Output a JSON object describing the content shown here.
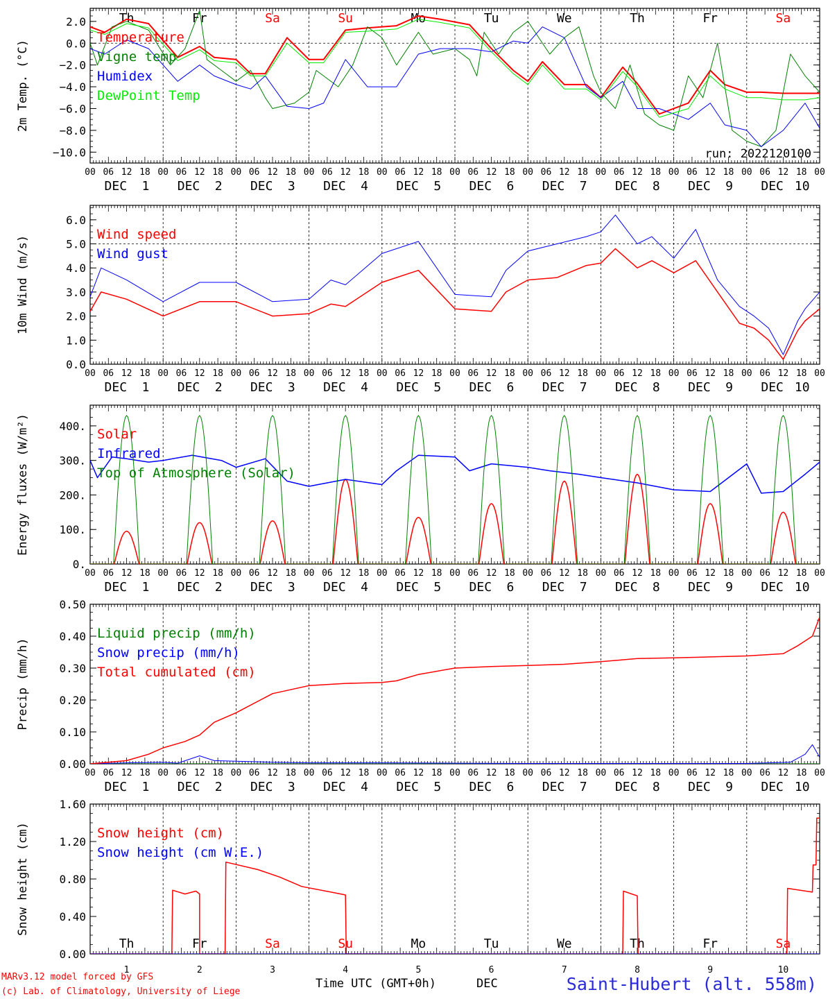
{
  "footer": {
    "model": "MARv3.12 model forced by GFS",
    "copyright": "(c) Lab. of Climatology, University of Liege",
    "xlabel": "Time UTC (GMT+0h)",
    "month": "DEC",
    "station": "Saint-Hubert (alt. 558m)"
  },
  "days": {
    "names": [
      "Th",
      "Fr",
      "Sa",
      "Su",
      "Mo",
      "Tu",
      "We",
      "Th",
      "Fr",
      "Sa"
    ],
    "weekend": [
      false,
      false,
      true,
      true,
      false,
      false,
      false,
      false,
      false,
      true
    ],
    "dates": [
      "1",
      "2",
      "3",
      "4",
      "5",
      "6",
      "7",
      "8",
      "9",
      "10"
    ],
    "hour_ticks": [
      "00",
      "06",
      "12",
      "18"
    ],
    "month": "DEC"
  },
  "colors": {
    "red": "#ff0000",
    "green": "#008000",
    "blue": "#0000ff",
    "lightgreen": "#00ee00",
    "station": "#2b2bd6"
  },
  "chart_data": [
    {
      "type": "line",
      "ylabel": "2m Temp. (°C)",
      "ylim": [
        -11,
        3.2
      ],
      "yticks": [
        2.0,
        0.0,
        -2.0,
        -4.0,
        -6.0,
        -8.0,
        -10.0
      ],
      "ytick_labels": [
        "2.0",
        "0.0",
        "−2.0",
        "−4.0",
        "−6.0",
        "−8.0",
        "−10.0"
      ],
      "zero_line": 0,
      "show_day_names": true,
      "annotation": "run: 2022120100",
      "x_unit": "days since DEC 1 00 UTC",
      "series": [
        {
          "name": "Temperature",
          "color": "#ff0000",
          "width": 2,
          "x": [
            0,
            0.2,
            0.5,
            0.8,
            1.2,
            1.5,
            1.7,
            2,
            2.2,
            2.4,
            2.7,
            3,
            3.2,
            3.5,
            3.8,
            4.2,
            4.5,
            4.8,
            5.2,
            5.5,
            5.8,
            6,
            6.2,
            6.5,
            6.8,
            7,
            7.3,
            7.5,
            7.8,
            8.2,
            8.5,
            8.7,
            9,
            9.2,
            9.5,
            9.8,
            10
          ],
          "y": [
            1.5,
            1.0,
            2.2,
            1.8,
            -1.3,
            -0.3,
            -1.3,
            -1.5,
            -2.8,
            -2.8,
            0.5,
            -1.5,
            -1.5,
            1.2,
            1.4,
            1.6,
            2.5,
            2.2,
            1.7,
            -0.5,
            -2.5,
            -3.5,
            -1.7,
            -3.8,
            -3.8,
            -5.0,
            -2.2,
            -3.7,
            -6.5,
            -5.5,
            -2.5,
            -3.8,
            -4.5,
            -4.5,
            -4.6,
            -4.6,
            -4.6
          ]
        },
        {
          "name": "Vigne temp",
          "color": "#008000",
          "width": 1,
          "x": [
            0,
            0.1,
            0.3,
            0.5,
            0.8,
            1.1,
            1.3,
            1.5,
            1.6,
            1.8,
            2,
            2.2,
            2.4,
            2.5,
            2.8,
            3,
            3.1,
            3.4,
            3.6,
            3.8,
            4.0,
            4.2,
            4.5,
            4.7,
            5.0,
            5.2,
            5.3,
            5.4,
            5.6,
            5.8,
            6.0,
            6.1,
            6.3,
            6.5,
            6.7,
            6.9,
            7.0,
            7.2,
            7.4,
            7.6,
            7.8,
            8.0,
            8.2,
            8.4,
            8.6,
            8.8,
            9.0,
            9.2,
            9.4,
            9.6,
            9.8,
            10
          ],
          "y": [
            0.0,
            -2.0,
            1.5,
            2.0,
            1.2,
            -2.0,
            -0.5,
            3.0,
            -1.5,
            -2.5,
            -3.5,
            -2.5,
            -5.0,
            -6.0,
            -5.5,
            -4.5,
            -2.5,
            -4.0,
            -2.0,
            1.5,
            0.5,
            -2.0,
            1.0,
            -1.0,
            -0.5,
            -1.5,
            -3.0,
            1.0,
            -1.0,
            1.0,
            2.0,
            1.0,
            -1.0,
            0.5,
            1.5,
            -3.0,
            -4.5,
            -6.0,
            -2.0,
            -6.5,
            -7.5,
            -8.0,
            -3.0,
            -5.0,
            0.0,
            -8.0,
            -9.0,
            -9.5,
            -8.0,
            -1.0,
            -3.0,
            -4.5
          ]
        },
        {
          "name": "Humidex",
          "color": "#0000ff",
          "width": 1,
          "x": [
            0,
            0.2,
            0.5,
            0.8,
            1.2,
            1.5,
            1.7,
            2,
            2.2,
            2.4,
            2.7,
            3,
            3.2,
            3.5,
            3.8,
            4.2,
            4.5,
            4.8,
            5.2,
            5.5,
            5.8,
            6,
            6.2,
            6.5,
            6.8,
            7,
            7.3,
            7.5,
            7.8,
            8.2,
            8.5,
            8.7,
            9,
            9.2,
            9.5,
            9.8,
            10
          ],
          "y": [
            -0.5,
            -1.0,
            0.3,
            -0.5,
            -3.5,
            -2.0,
            -3.0,
            -3.8,
            -4.2,
            -3.0,
            -5.8,
            -6.0,
            -5.5,
            -1.5,
            -4.0,
            -4.0,
            -1.0,
            -0.5,
            -0.5,
            -0.8,
            0.2,
            0.0,
            1.5,
            0.5,
            -4.0,
            -5.0,
            -3.5,
            -6.0,
            -6.0,
            -7.0,
            -5.5,
            -7.5,
            -8.0,
            -9.5,
            -8.0,
            -5.5,
            -7.8
          ]
        },
        {
          "name": "DewPoint Temp",
          "color": "#00ee00",
          "width": 1,
          "x": [
            0,
            0.2,
            0.5,
            0.8,
            1.2,
            1.5,
            1.7,
            2,
            2.2,
            2.4,
            2.7,
            3,
            3.2,
            3.5,
            3.8,
            4.2,
            4.5,
            4.8,
            5.2,
            5.5,
            5.8,
            6,
            6.2,
            6.5,
            6.8,
            7,
            7.3,
            7.5,
            7.8,
            8.2,
            8.5,
            8.7,
            9,
            9.2,
            9.5,
            9.8,
            10
          ],
          "y": [
            1.2,
            0.8,
            1.8,
            1.4,
            -1.6,
            -0.6,
            -1.6,
            -1.8,
            -3.0,
            -3.0,
            0.0,
            -1.8,
            -1.8,
            1.0,
            1.1,
            1.3,
            2.2,
            1.9,
            1.4,
            -0.8,
            -2.8,
            -3.8,
            -2.0,
            -4.2,
            -4.2,
            -5.2,
            -2.6,
            -4.0,
            -6.8,
            -6.0,
            -3.0,
            -4.2,
            -5.0,
            -5.0,
            -5.2,
            -5.2,
            -5.0
          ]
        }
      ]
    },
    {
      "type": "line",
      "ylabel": "10m Wind (m/s)",
      "ylim": [
        0,
        6.6
      ],
      "yticks": [
        0,
        1,
        2,
        3,
        4,
        5,
        6
      ],
      "ytick_labels": [
        "0.0",
        "1.0",
        "2.0",
        "3.0",
        "4.0",
        "5.0",
        "6.0"
      ],
      "ref_line": 5.0,
      "x_unit": "days since DEC 1 00 UTC",
      "series": [
        {
          "name": "Wind speed",
          "color": "#ff0000",
          "width": 1.5,
          "x": [
            0,
            0.15,
            0.5,
            1.0,
            1.5,
            2.0,
            2.5,
            3.0,
            3.3,
            3.5,
            4.0,
            4.5,
            5.0,
            5.5,
            5.7,
            6.0,
            6.4,
            6.8,
            7.0,
            7.2,
            7.5,
            7.7,
            8.0,
            8.3,
            8.6,
            8.9,
            9.1,
            9.3,
            9.5,
            9.7,
            9.8,
            10
          ],
          "y": [
            2.2,
            3.0,
            2.7,
            2.0,
            2.6,
            2.6,
            2.0,
            2.1,
            2.5,
            2.4,
            3.4,
            3.9,
            2.3,
            2.2,
            3.0,
            3.5,
            3.6,
            4.1,
            4.2,
            4.8,
            4.0,
            4.3,
            3.8,
            4.3,
            3.0,
            1.7,
            1.5,
            1.0,
            0.2,
            1.4,
            1.8,
            2.3
          ]
        },
        {
          "name": "Wind gust",
          "color": "#0000ff",
          "width": 1,
          "x": [
            0,
            0.15,
            0.5,
            1.0,
            1.5,
            2.0,
            2.5,
            3.0,
            3.3,
            3.5,
            4.0,
            4.5,
            5.0,
            5.5,
            5.7,
            6.0,
            6.4,
            6.8,
            7.0,
            7.2,
            7.5,
            7.7,
            8.0,
            8.3,
            8.6,
            8.9,
            9.1,
            9.3,
            9.5,
            9.7,
            9.8,
            10
          ],
          "y": [
            2.8,
            4.0,
            3.5,
            2.6,
            3.4,
            3.4,
            2.6,
            2.7,
            3.5,
            3.3,
            4.6,
            5.1,
            2.9,
            2.8,
            3.9,
            4.7,
            5.0,
            5.3,
            5.5,
            6.2,
            5.0,
            5.3,
            4.4,
            5.6,
            3.5,
            2.4,
            2.0,
            1.5,
            0.4,
            1.8,
            2.3,
            3.0
          ]
        }
      ]
    },
    {
      "type": "line",
      "ylabel": "Energy fluxes (W/m²)",
      "ylim": [
        0,
        460
      ],
      "yticks": [
        0,
        100,
        200,
        300,
        400
      ],
      "ytick_labels": [
        "0.",
        "100.",
        "200.",
        "300.",
        "400."
      ],
      "x_unit": "days since DEC 1 00 UTC",
      "solar_peaks": [
        95,
        120,
        125,
        245,
        135,
        175,
        240,
        260,
        175,
        150
      ],
      "toa_peak": 430,
      "series": [
        {
          "name": "Solar",
          "color": "#ff0000",
          "width": 1.5
        },
        {
          "name": "Infrared",
          "color": "#0000ff",
          "width": 1.5,
          "x": [
            0,
            0.1,
            0.3,
            0.5,
            0.8,
            1.0,
            1.4,
            1.8,
            2.0,
            2.4,
            2.7,
            3.0,
            3.5,
            4.0,
            4.2,
            4.5,
            5.0,
            5.2,
            5.5,
            6.0,
            6.3,
            6.7,
            7.0,
            7.5,
            8.0,
            8.5,
            9.0,
            9.2,
            9.5,
            9.8,
            10
          ],
          "y": [
            300,
            250,
            310,
            305,
            295,
            300,
            315,
            300,
            280,
            305,
            240,
            225,
            245,
            230,
            270,
            315,
            310,
            270,
            290,
            280,
            270,
            260,
            250,
            235,
            215,
            210,
            290,
            205,
            210,
            260,
            295
          ]
        },
        {
          "name": "Top of Atmosphere (Solar)",
          "color": "#008000",
          "width": 1
        }
      ]
    },
    {
      "type": "line",
      "ylabel": "Precip (mm/h)",
      "ylim": [
        0,
        0.5
      ],
      "yticks": [
        0,
        0.1,
        0.2,
        0.3,
        0.4,
        0.5
      ],
      "ytick_labels": [
        "0.00",
        "0.10",
        "0.20",
        "0.30",
        "0.40",
        "0.50"
      ],
      "x_unit": "days since DEC 1 00 UTC",
      "series": [
        {
          "name": "Liquid precip (mm/h)",
          "color": "#008000",
          "width": 1,
          "x": [
            0,
            10
          ],
          "y": [
            0,
            0
          ]
        },
        {
          "name": "Snow precip (mm/h)",
          "color": "#0000ff",
          "width": 1,
          "x": [
            0,
            0.5,
            1.0,
            1.2,
            1.5,
            1.7,
            2.0,
            2.5,
            3.0,
            4.0,
            5.0,
            6.0,
            7.0,
            8.0,
            9.0,
            9.6,
            9.8,
            9.9,
            10
          ],
          "y": [
            0,
            0.003,
            0.005,
            0.002,
            0.025,
            0.01,
            0.008,
            0.005,
            0.003,
            0.003,
            0.002,
            0.001,
            0.001,
            0.001,
            0.001,
            0.005,
            0.03,
            0.06,
            0.02
          ]
        },
        {
          "name": "Total cumulated (cm)",
          "color": "#ff0000",
          "width": 1.5,
          "x": [
            0,
            0.5,
            0.8,
            1.0,
            1.3,
            1.5,
            1.7,
            2.0,
            2.5,
            3.0,
            3.5,
            4.0,
            4.2,
            4.5,
            5.0,
            5.5,
            6.0,
            6.5,
            7.0,
            7.5,
            8.0,
            8.5,
            9.0,
            9.5,
            9.7,
            9.9,
            10
          ],
          "y": [
            0,
            0.01,
            0.03,
            0.05,
            0.07,
            0.09,
            0.13,
            0.16,
            0.22,
            0.245,
            0.252,
            0.255,
            0.26,
            0.28,
            0.3,
            0.305,
            0.308,
            0.312,
            0.32,
            0.33,
            0.332,
            0.335,
            0.338,
            0.345,
            0.37,
            0.4,
            0.46
          ]
        }
      ]
    },
    {
      "type": "line",
      "ylabel": "Snow height (cm)",
      "ylim": [
        0,
        1.6
      ],
      "yticks": [
        0,
        0.4,
        0.8,
        1.2,
        1.6
      ],
      "ytick_labels": [
        "0.00",
        "0.40",
        "0.80",
        "1.20",
        "1.60"
      ],
      "show_day_names_bottom": true,
      "x_unit": "days since DEC 1 00 UTC",
      "series": [
        {
          "name": "Snow height (cm)",
          "color": "#ff0000",
          "width": 1.5,
          "x": [
            0,
            1.12,
            1.13,
            1.3,
            1.45,
            1.5,
            1.5,
            1.85,
            1.86,
            2.3,
            2.6,
            2.9,
            3.3,
            3.5,
            3.51,
            7.3,
            7.31,
            7.5,
            7.51,
            9.55,
            9.56,
            9.9,
            9.91,
            9.95,
            9.96,
            10
          ],
          "y": [
            0,
            0,
            0.68,
            0.64,
            0.67,
            0.64,
            0,
            0,
            0.98,
            0.9,
            0.82,
            0.72,
            0.66,
            0.63,
            0,
            0,
            0.67,
            0.62,
            0,
            0,
            0.7,
            0.66,
            0.95,
            0.95,
            1.45,
            1.45
          ]
        },
        {
          "name": "Snow height (cm W.E.)",
          "color": "#0000ff",
          "width": 1,
          "x": [
            0,
            10
          ],
          "y": [
            0,
            0
          ]
        }
      ]
    }
  ]
}
